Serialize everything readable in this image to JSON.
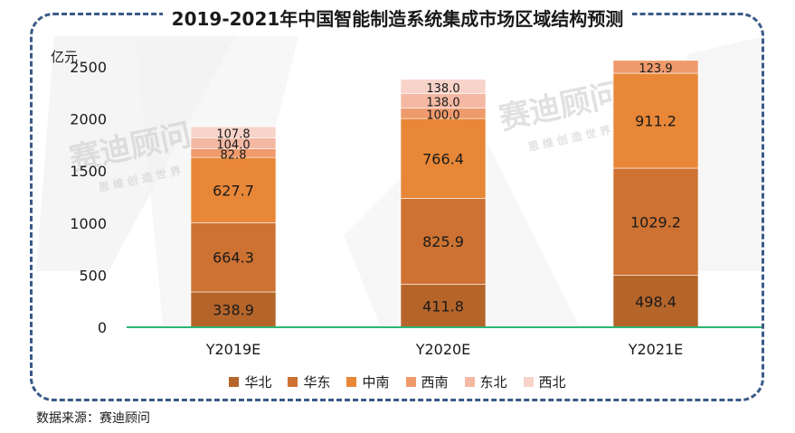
{
  "title": "2019-2021年中国智能制造系统集成市场区域结构预测",
  "unit_label": "亿元",
  "source": "数据来源：赛迪顾问",
  "watermark": {
    "main": "赛迪顾问",
    "sub": "思 维 创 造 世 界"
  },
  "colors": {
    "华北": "#b5652a",
    "华东": "#cd7232",
    "中南": "#e88737",
    "西南": "#ef9a6c",
    "东北": "#f4b8a3",
    "西北": "#f7d3c9",
    "baseline": "#2bb673",
    "frame": "#3a5a88"
  },
  "chart_data": {
    "type": "bar",
    "stacked": true,
    "categories": [
      "Y2019E",
      "Y2020E",
      "Y2021E"
    ],
    "series": [
      {
        "name": "华北",
        "values": [
          338.9,
          411.8,
          498.4
        ]
      },
      {
        "name": "华东",
        "values": [
          664.3,
          825.9,
          1029.2
        ]
      },
      {
        "name": "中南",
        "values": [
          627.7,
          766.4,
          911.2
        ]
      },
      {
        "name": "西南",
        "values": [
          82.8,
          100.0,
          123.9
        ]
      },
      {
        "name": "东北",
        "values": [
          104.0,
          138.0,
          null
        ]
      },
      {
        "name": "西北",
        "values": [
          107.8,
          138.0,
          null
        ]
      }
    ],
    "ylabel": "亿元",
    "ylim": [
      0,
      2500
    ],
    "yticks": [
      0,
      500,
      1000,
      1500,
      2000,
      2500
    ],
    "grid": false,
    "legend_position": "bottom"
  }
}
